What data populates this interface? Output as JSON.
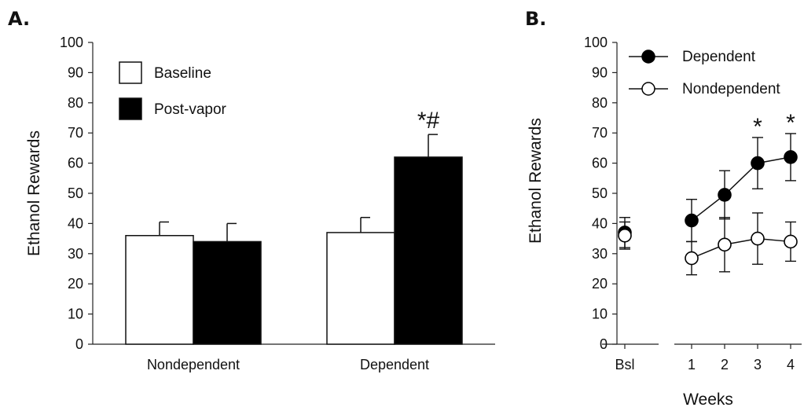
{
  "chart_data": [
    {
      "panel": "A.",
      "type": "bar",
      "ylabel": "Ethanol Rewards",
      "ylim": [
        0,
        100
      ],
      "yticks": [
        0,
        10,
        20,
        30,
        40,
        50,
        60,
        70,
        80,
        90,
        100
      ],
      "categories": [
        "Nondependent",
        "Dependent"
      ],
      "series": [
        {
          "name": "Baseline",
          "color": "#ffffff",
          "values": [
            36,
            37
          ],
          "errors": [
            4.5,
            5
          ]
        },
        {
          "name": "Post-vapor",
          "color": "#000000",
          "values": [
            34,
            62
          ],
          "errors": [
            6,
            7.5
          ]
        }
      ],
      "annotations": [
        {
          "category": 1,
          "series": 1,
          "text": "*#"
        }
      ],
      "legend_position": "top-left"
    },
    {
      "panel": "B.",
      "type": "line",
      "xlabel": "Weeks",
      "ylabel": "Ethanol Rewards",
      "ylim": [
        0,
        100
      ],
      "yticks": [
        0,
        10,
        20,
        30,
        40,
        50,
        60,
        70,
        80,
        90,
        100
      ],
      "x_ticks": [
        "Bsl",
        "1",
        "2",
        "3",
        "4"
      ],
      "series": [
        {
          "name": "Dependent",
          "marker": "filled-circle",
          "baseline": {
            "value": 37,
            "error": 5
          },
          "values": [
            41,
            49.5,
            60,
            62
          ],
          "errors": [
            7,
            8,
            8.5,
            7.8
          ]
        },
        {
          "name": "Nondependent",
          "marker": "open-circle",
          "baseline": {
            "value": 36,
            "error": 4.5
          },
          "values": [
            28.5,
            33,
            35,
            34
          ],
          "errors": [
            5.5,
            9,
            8.5,
            6.5
          ]
        }
      ],
      "annotations": [
        {
          "x": "3",
          "text": "*"
        },
        {
          "x": "4",
          "text": "*"
        }
      ],
      "legend_position": "top-left"
    }
  ]
}
